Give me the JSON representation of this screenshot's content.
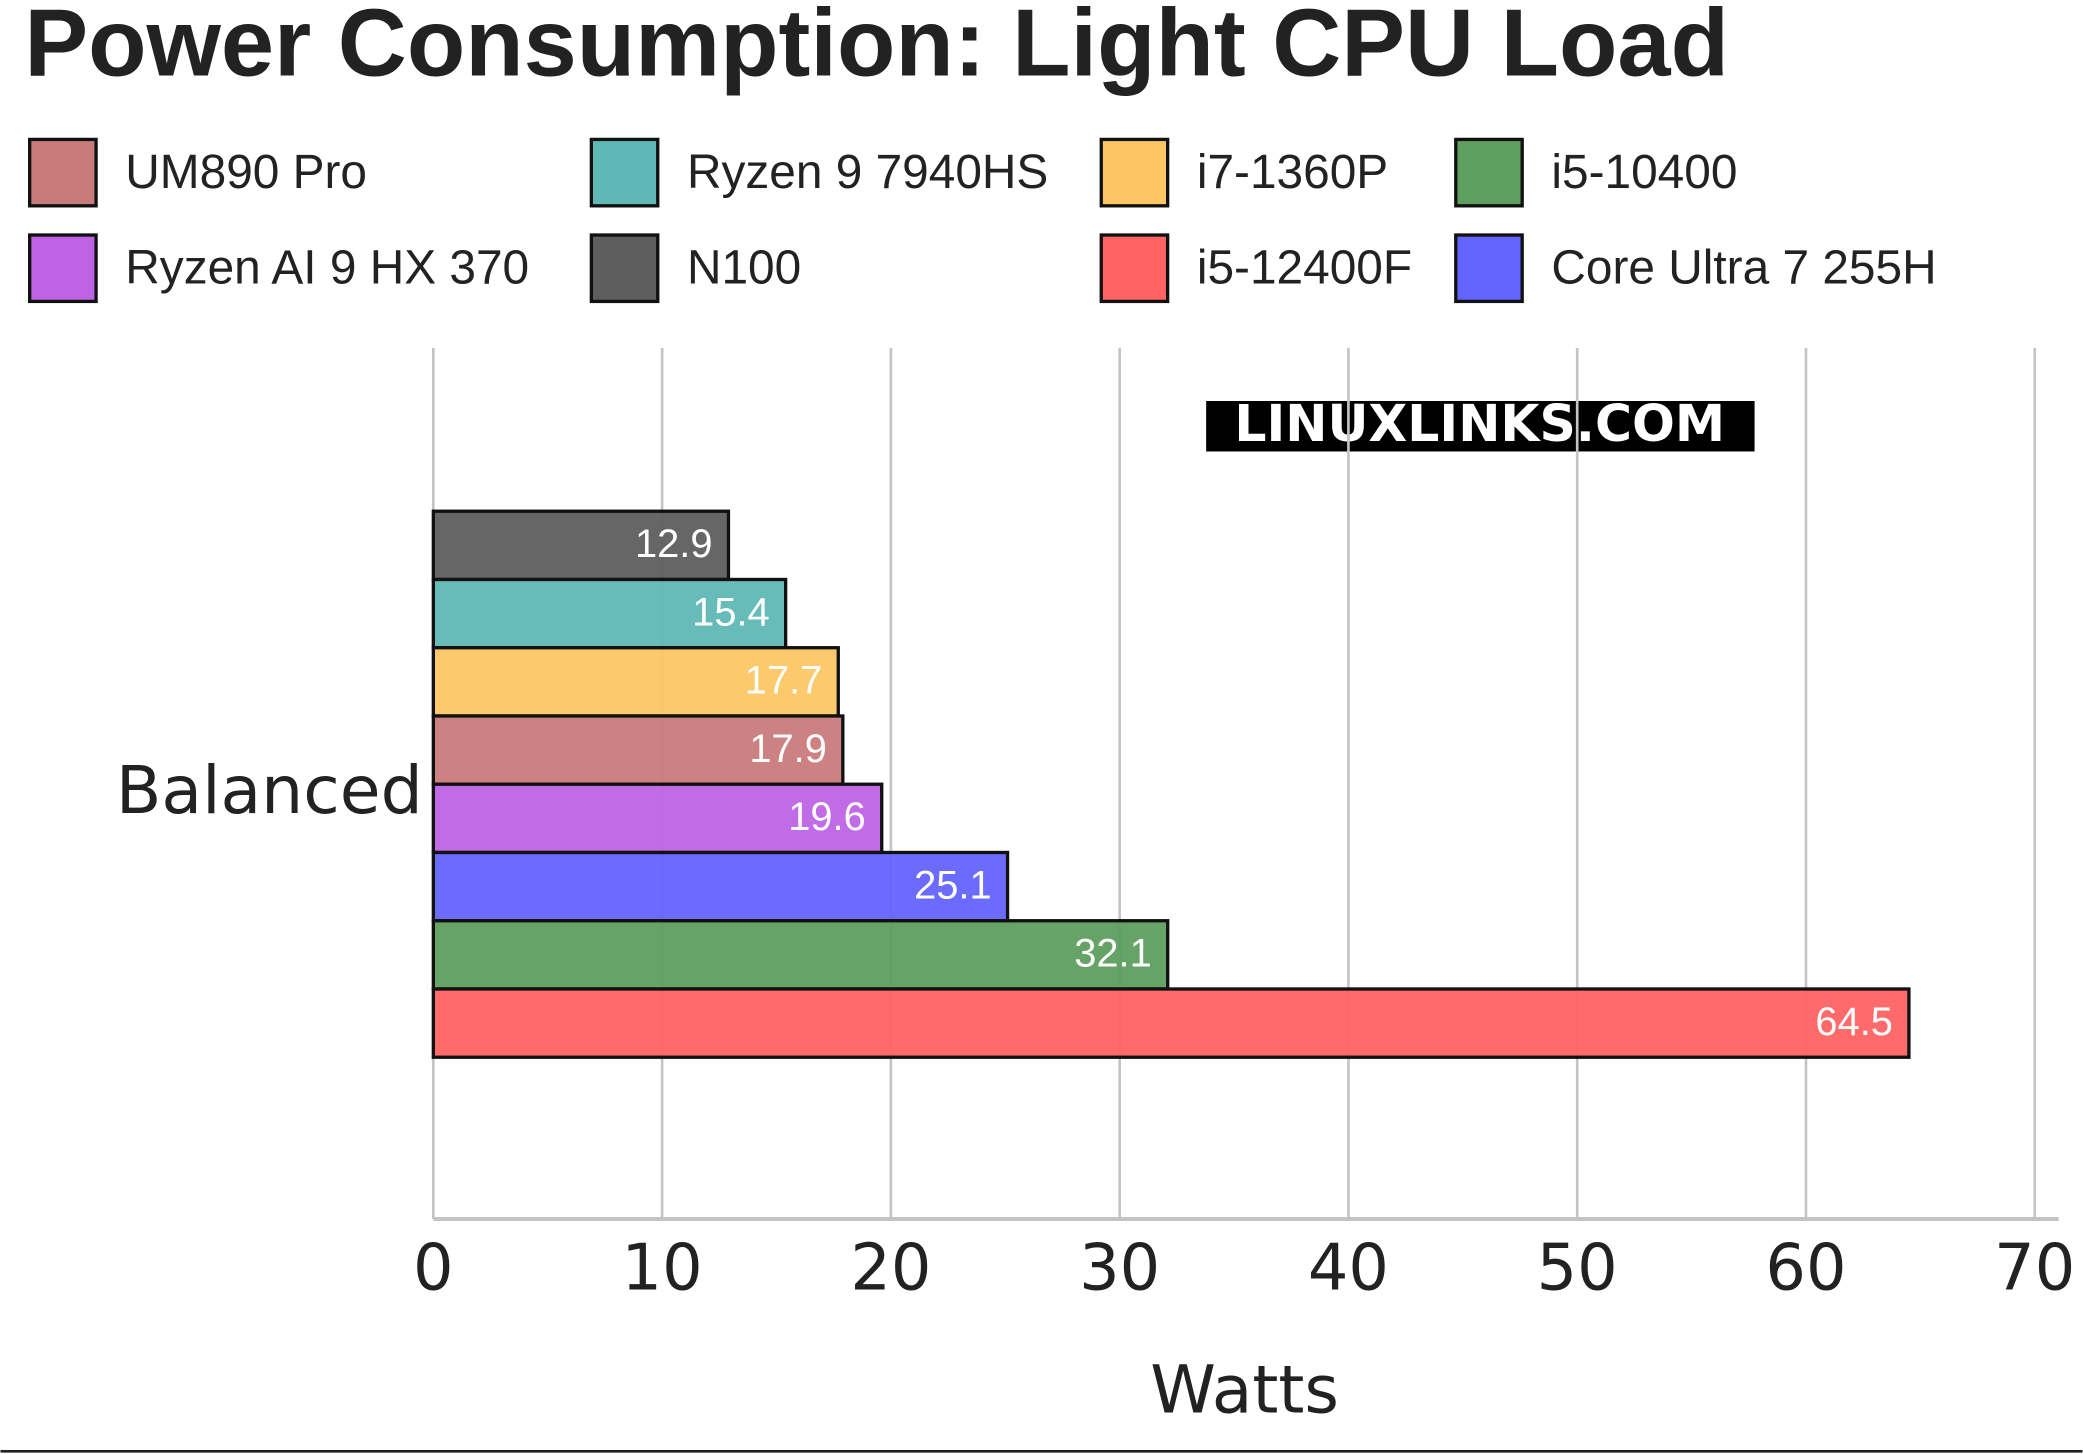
{
  "chart_data": {
    "type": "bar",
    "orientation": "horizontal",
    "title": "Power Consumption: Light CPU Load",
    "watermark": "LINUXLINKS.COM",
    "x_label": "Watts",
    "categories": [
      "Balanced"
    ],
    "series": [
      {
        "name": "N100",
        "color": "#5e5e5e",
        "values": [
          12.9
        ]
      },
      {
        "name": "Ryzen 9 7940HS",
        "color": "#5fb8b5",
        "values": [
          15.4
        ]
      },
      {
        "name": "i7-1360P",
        "color": "#fcc664",
        "values": [
          17.7
        ]
      },
      {
        "name": "UM890 Pro",
        "color": "#c97b7b",
        "values": [
          17.9
        ]
      },
      {
        "name": "Ryzen AI 9 HX 370",
        "color": "#bf63e6",
        "values": [
          19.6
        ]
      },
      {
        "name": "Core Ultra 7 255H",
        "color": "#6363ff",
        "values": [
          25.1
        ]
      },
      {
        "name": "i5-10400",
        "color": "#5e9e5e",
        "values": [
          32.1
        ]
      },
      {
        "name": "i5-12400F",
        "color": "#ff6363",
        "values": [
          64.5
        ]
      }
    ],
    "xlim": [
      0,
      70
    ],
    "xticks": [
      0,
      10,
      20,
      30,
      40,
      50,
      60,
      70
    ],
    "grid": true
  }
}
